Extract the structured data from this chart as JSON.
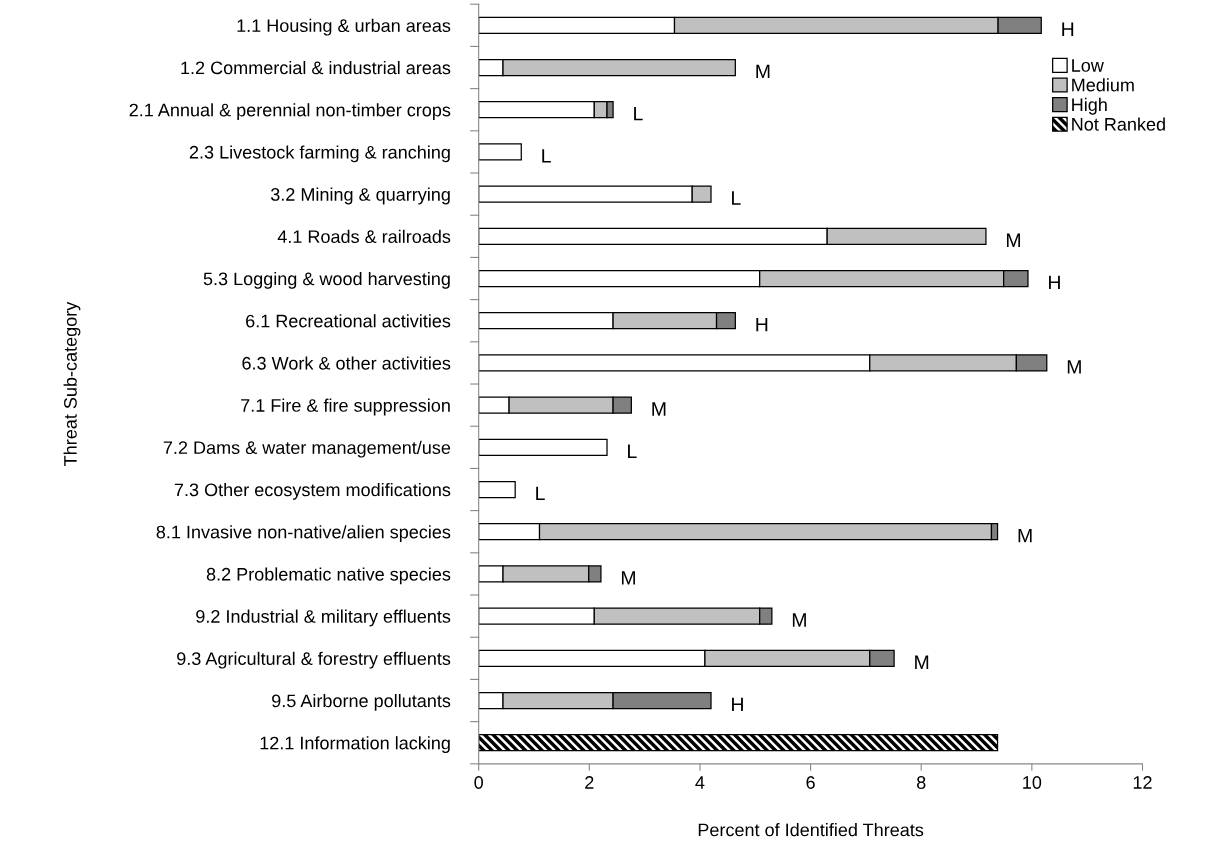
{
  "chart_data": {
    "type": "bar",
    "orientation": "horizontal",
    "stacked": true,
    "xlabel": "Percent of Identified Threats",
    "ylabel": "Threat Sub-category",
    "categories": [
      "1.1 Housing & urban areas",
      "1.2 Commercial & industrial areas",
      "2.1 Annual & perennial non-timber crops",
      "2.3 Livestock farming & ranching",
      "3.2 Mining & quarrying",
      "4.1 Roads & railroads",
      "5.3 Logging & wood harvesting",
      "6.1 Recreational activities",
      "6.3 Work & other activities",
      "7.1 Fire & fire suppression",
      "7.2 Dams & water management/use",
      "7.3 Other ecosystem modifications",
      "8.1 Invasive non-native/alien species",
      "8.2 Problematic native species",
      "9.2 Industrial & military effluents",
      "9.3 Agricultural & forestry effluents",
      "9.5 Airborne pollutants",
      "12.1 Information lacking"
    ],
    "series": [
      {
        "name": "Low",
        "color": "#ffffff",
        "values": [
          3.54,
          0.44,
          2.09,
          0.77,
          3.86,
          6.3,
          5.08,
          2.43,
          7.07,
          0.55,
          2.32,
          0.66,
          1.1,
          0.44,
          2.09,
          4.09,
          0.44,
          null
        ]
      },
      {
        "name": "Medium",
        "color": "#c0c0c0",
        "values": [
          5.85,
          4.2,
          0.23,
          null,
          0.34,
          2.87,
          4.41,
          1.87,
          2.65,
          1.88,
          null,
          null,
          8.17,
          1.55,
          2.99,
          2.98,
          1.99,
          null
        ]
      },
      {
        "name": "High",
        "color": "#808080",
        "values": [
          0.78,
          null,
          0.11,
          null,
          null,
          null,
          0.44,
          0.34,
          0.55,
          0.33,
          null,
          null,
          0.11,
          0.22,
          0.22,
          0.44,
          1.77,
          null
        ]
      },
      {
        "name": "Not Ranked",
        "color": "#000000",
        "values": [
          null,
          null,
          null,
          null,
          null,
          null,
          null,
          null,
          null,
          null,
          null,
          null,
          null,
          null,
          null,
          null,
          null,
          9.38
        ]
      }
    ],
    "annotations": [
      {
        "text": "H",
        "x": 10.17,
        "y": "1.1 Housing & urban areas"
      },
      {
        "text": "M",
        "x": 4.64,
        "y": "1.2 Commercial & industrial areas"
      },
      {
        "text": "L",
        "x": 2.43,
        "y": "2.1 Annual & perennial non-timber crops"
      },
      {
        "text": "L",
        "x": 0.77,
        "y": "2.3 Livestock farming & ranching"
      },
      {
        "text": "L",
        "x": 4.2,
        "y": "3.2 Mining & quarrying"
      },
      {
        "text": "M",
        "x": 9.17,
        "y": "4.1 Roads & railroads"
      },
      {
        "text": "H",
        "x": 9.93,
        "y": "5.3 Logging & wood harvesting"
      },
      {
        "text": "H",
        "x": 4.64,
        "y": "6.1 Recreational activities"
      },
      {
        "text": "M",
        "x": 10.27,
        "y": "6.3 Work & other activities"
      },
      {
        "text": "M",
        "x": 2.76,
        "y": "7.1 Fire & fire suppression"
      },
      {
        "text": "L",
        "x": 2.32,
        "y": "7.2 Dams & water management/use"
      },
      {
        "text": "L",
        "x": 0.66,
        "y": "7.3 Other ecosystem modifications"
      },
      {
        "text": "M",
        "x": 9.38,
        "y": "8.1 Invasive non-native/alien species"
      },
      {
        "text": "M",
        "x": 2.21,
        "y": "8.2 Problematic native species"
      },
      {
        "text": "M",
        "x": 5.3,
        "y": "9.2 Industrial & military effluents"
      },
      {
        "text": "M",
        "x": 7.51,
        "y": "9.3 Agricultural & forestry effluents"
      },
      {
        "text": "H",
        "x": 4.2,
        "y": "9.5 Airborne pollutants"
      }
    ],
    "xlim": [
      0,
      12
    ],
    "xticks": [
      0,
      2,
      4,
      6,
      8,
      10,
      12
    ],
    "grid": false,
    "legend": "top right"
  }
}
